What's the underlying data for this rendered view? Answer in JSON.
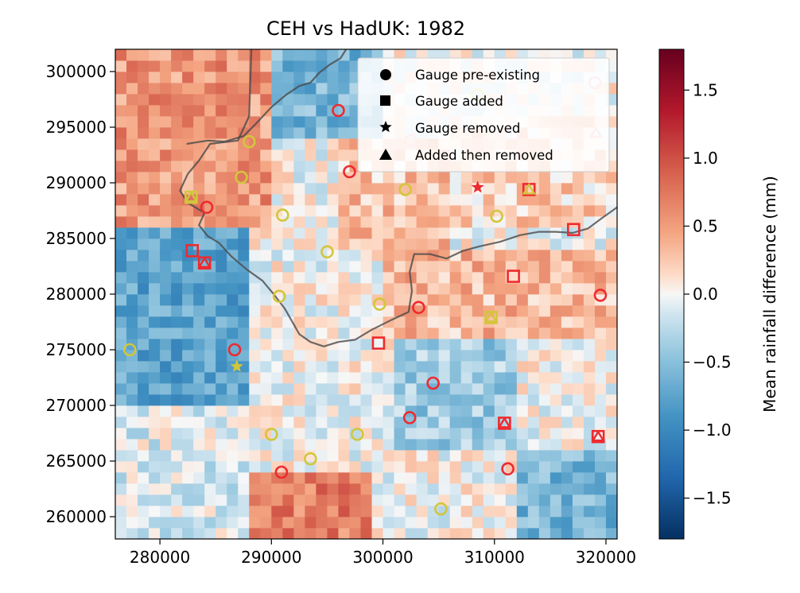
{
  "chart_data": {
    "type": "heatmap",
    "title": "CEH vs HadUK: 1982",
    "xlabel": "",
    "ylabel": "",
    "xlim": [
      276000,
      321000
    ],
    "ylim": [
      258000,
      302000
    ],
    "x_ticks": [
      280000,
      290000,
      300000,
      310000,
      320000
    ],
    "x_tick_labels": [
      "280000",
      "290000",
      "300000",
      "310000",
      "320000"
    ],
    "y_ticks": [
      260000,
      265000,
      270000,
      275000,
      280000,
      285000,
      290000,
      295000,
      300000
    ],
    "y_tick_labels": [
      "260000",
      "265000",
      "270000",
      "275000",
      "280000",
      "285000",
      "290000",
      "295000",
      "300000"
    ],
    "grid_cell_size": 1000,
    "colorbar": {
      "label": "Mean rainfall difference (mm)",
      "range": [
        -1.8,
        1.8
      ],
      "ticks": [
        1.5,
        1.0,
        0.5,
        0.0,
        -0.5,
        -1.0,
        -1.5
      ],
      "tick_labels": [
        "1.5",
        "1.0",
        "0.5",
        "0.0",
        "−0.5",
        "−1.0",
        "−1.5"
      ],
      "colormap": "RdBu_r"
    },
    "legend": {
      "placement": "top-right",
      "entries": [
        {
          "marker": "circle",
          "label": "Gauge pre-existing"
        },
        {
          "marker": "square",
          "label": "Gauge added"
        },
        {
          "marker": "star",
          "label": "Gauge removed"
        },
        {
          "marker": "triangle",
          "label": "Added then removed"
        }
      ]
    },
    "field_regions": [
      {
        "x": [
          276000,
          290000
        ],
        "y": [
          286000,
          302000
        ],
        "value": 0.55
      },
      {
        "x": [
          276000,
          288000
        ],
        "y": [
          270000,
          286000
        ],
        "value": -0.75
      },
      {
        "x": [
          288000,
          299000
        ],
        "y": [
          258000,
          264000
        ],
        "value": 0.7
      },
      {
        "x": [
          290000,
          300000
        ],
        "y": [
          294000,
          302000
        ],
        "value": -0.6
      },
      {
        "x": [
          300000,
          321000
        ],
        "y": [
          276000,
          284000
        ],
        "value": 0.35
      },
      {
        "x": [
          301000,
          312000
        ],
        "y": [
          266000,
          276000
        ],
        "value": -0.4
      },
      {
        "x": [
          312000,
          321000
        ],
        "y": [
          258000,
          266000
        ],
        "value": -0.6
      },
      {
        "x": [
          276000,
          288000
        ],
        "y": [
          258000,
          270000
        ],
        "value": -0.1
      },
      {
        "x": [
          296000,
          306000
        ],
        "y": [
          284000,
          294000
        ],
        "value": 0.3
      },
      {
        "x": [
          306000,
          321000
        ],
        "y": [
          286000,
          296000
        ],
        "value": 0.2
      }
    ],
    "boundaries": [
      {
        "name": "boundary-west",
        "points": [
          [
            288200,
            302000
          ],
          [
            288000,
            296000
          ],
          [
            287000,
            293800
          ],
          [
            284500,
            293500
          ],
          [
            283500,
            292000
          ],
          [
            282500,
            290800
          ],
          [
            281800,
            289300
          ],
          [
            282500,
            288200
          ],
          [
            284000,
            287300
          ],
          [
            283500,
            286200
          ],
          [
            284300,
            285200
          ],
          [
            285300,
            284600
          ],
          [
            286400,
            283400
          ],
          [
            287800,
            282200
          ],
          [
            289200,
            281200
          ],
          [
            290200,
            280000
          ],
          [
            291200,
            278700
          ],
          [
            292500,
            276400
          ],
          [
            293500,
            275700
          ],
          [
            294700,
            275300
          ],
          [
            296000,
            275700
          ],
          [
            297500,
            275900
          ],
          [
            299000,
            276800
          ],
          [
            300800,
            277700
          ],
          [
            302300,
            278400
          ],
          [
            302600,
            280300
          ],
          [
            302400,
            282000
          ],
          [
            302800,
            283600
          ],
          [
            304200,
            283600
          ],
          [
            305700,
            283200
          ],
          [
            307200,
            283900
          ],
          [
            308700,
            284300
          ],
          [
            310500,
            284700
          ],
          [
            312300,
            285300
          ],
          [
            314000,
            285600
          ],
          [
            315500,
            285600
          ],
          [
            317000,
            285500
          ],
          [
            318400,
            285900
          ],
          [
            319600,
            286800
          ],
          [
            321000,
            287800
          ]
        ]
      },
      {
        "name": "boundary-north",
        "points": [
          [
            282400,
            293500
          ],
          [
            284300,
            293800
          ],
          [
            285800,
            293700
          ],
          [
            287500,
            294200
          ],
          [
            288500,
            295200
          ],
          [
            290000,
            296800
          ],
          [
            291300,
            297900
          ],
          [
            292500,
            298700
          ],
          [
            293500,
            299000
          ],
          [
            294300,
            299900
          ],
          [
            295200,
            300600
          ],
          [
            296200,
            301200
          ],
          [
            296700,
            302000
          ]
        ]
      }
    ],
    "gauges": [
      {
        "x": 296000,
        "y": 296500,
        "status": "pre-existing",
        "color": "#ee2a2e"
      },
      {
        "x": 302500,
        "y": 293800,
        "status": "pre-existing",
        "color": "#f5a3a5"
      },
      {
        "x": 297000,
        "y": 291000,
        "status": "pre-existing",
        "color": "#ee2a2e"
      },
      {
        "x": 308500,
        "y": 297900,
        "status": "pre-existing",
        "color": "#d2c63a"
      },
      {
        "x": 319000,
        "y": 299000,
        "status": "pre-existing",
        "color": "#f5a3a5"
      },
      {
        "x": 288000,
        "y": 293700,
        "status": "pre-existing",
        "color": "#d2c63a"
      },
      {
        "x": 287300,
        "y": 290500,
        "status": "pre-existing",
        "color": "#d2c63a"
      },
      {
        "x": 284200,
        "y": 287800,
        "status": "pre-existing",
        "color": "#ee2a2e"
      },
      {
        "x": 291000,
        "y": 287100,
        "status": "pre-existing",
        "color": "#d2c63a"
      },
      {
        "x": 302000,
        "y": 289400,
        "status": "pre-existing",
        "color": "#d2c63a"
      },
      {
        "x": 310200,
        "y": 287000,
        "status": "pre-existing",
        "color": "#d2c63a"
      },
      {
        "x": 295000,
        "y": 283800,
        "status": "pre-existing",
        "color": "#d2c63a"
      },
      {
        "x": 290700,
        "y": 279800,
        "status": "pre-existing",
        "color": "#d2c63a"
      },
      {
        "x": 299700,
        "y": 279100,
        "status": "pre-existing",
        "color": "#d2c63a"
      },
      {
        "x": 303200,
        "y": 278800,
        "status": "pre-existing",
        "color": "#ee2a2e"
      },
      {
        "x": 319500,
        "y": 279900,
        "status": "pre-existing",
        "color": "#ee2a2e"
      },
      {
        "x": 277300,
        "y": 275000,
        "status": "pre-existing",
        "color": "#d2c63a"
      },
      {
        "x": 286700,
        "y": 275000,
        "status": "pre-existing",
        "color": "#ee2a2e"
      },
      {
        "x": 304500,
        "y": 272000,
        "status": "pre-existing",
        "color": "#ee2a2e"
      },
      {
        "x": 302400,
        "y": 268900,
        "status": "pre-existing",
        "color": "#ee2a2e"
      },
      {
        "x": 290000,
        "y": 267400,
        "status": "pre-existing",
        "color": "#d2c63a"
      },
      {
        "x": 297700,
        "y": 267400,
        "status": "pre-existing",
        "color": "#d2c63a"
      },
      {
        "x": 293500,
        "y": 265200,
        "status": "pre-existing",
        "color": "#d2c63a"
      },
      {
        "x": 290900,
        "y": 264000,
        "status": "pre-existing",
        "color": "#ee2a2e"
      },
      {
        "x": 311200,
        "y": 264300,
        "status": "pre-existing",
        "color": "#ee2a2e"
      },
      {
        "x": 305200,
        "y": 260700,
        "status": "pre-existing",
        "color": "#d2c63a"
      },
      {
        "x": 313100,
        "y": 289400,
        "status": "added",
        "color": "#ee2a2e"
      },
      {
        "x": 317100,
        "y": 285800,
        "status": "added",
        "color": "#ee2a2e"
      },
      {
        "x": 282900,
        "y": 283900,
        "status": "added",
        "color": "#ee2a2e"
      },
      {
        "x": 284000,
        "y": 282800,
        "status": "added",
        "color": "#ee2a2e"
      },
      {
        "x": 311700,
        "y": 281600,
        "status": "added",
        "color": "#ee2a2e"
      },
      {
        "x": 299600,
        "y": 275600,
        "status": "added",
        "color": "#ee2a2e"
      },
      {
        "x": 282800,
        "y": 288700,
        "status": "added",
        "color": "#d2c63a"
      },
      {
        "x": 309700,
        "y": 277900,
        "status": "added",
        "color": "#d2c63a"
      },
      {
        "x": 310900,
        "y": 268400,
        "status": "added",
        "color": "#ee2a2e"
      },
      {
        "x": 319300,
        "y": 267200,
        "status": "added",
        "color": "#ee2a2e"
      },
      {
        "x": 308500,
        "y": 289600,
        "status": "removed",
        "color": "#ee2a2e"
      },
      {
        "x": 286900,
        "y": 273500,
        "status": "removed",
        "color": "#d2c63a"
      },
      {
        "x": 319100,
        "y": 294500,
        "status": "added-then-removed",
        "color": "#f5a3a5"
      },
      {
        "x": 282800,
        "y": 288700,
        "status": "added-then-removed",
        "color": "#d2c63a"
      },
      {
        "x": 284000,
        "y": 282800,
        "status": "added-then-removed",
        "color": "#ee2a2e"
      },
      {
        "x": 313100,
        "y": 289400,
        "status": "added-then-removed",
        "color": "#d2c63a"
      },
      {
        "x": 309700,
        "y": 277900,
        "status": "added-then-removed",
        "color": "#d2c63a"
      },
      {
        "x": 310900,
        "y": 268400,
        "status": "added-then-removed",
        "color": "#ee2a2e"
      },
      {
        "x": 319300,
        "y": 267200,
        "status": "added-then-removed",
        "color": "#ee2a2e"
      }
    ]
  }
}
